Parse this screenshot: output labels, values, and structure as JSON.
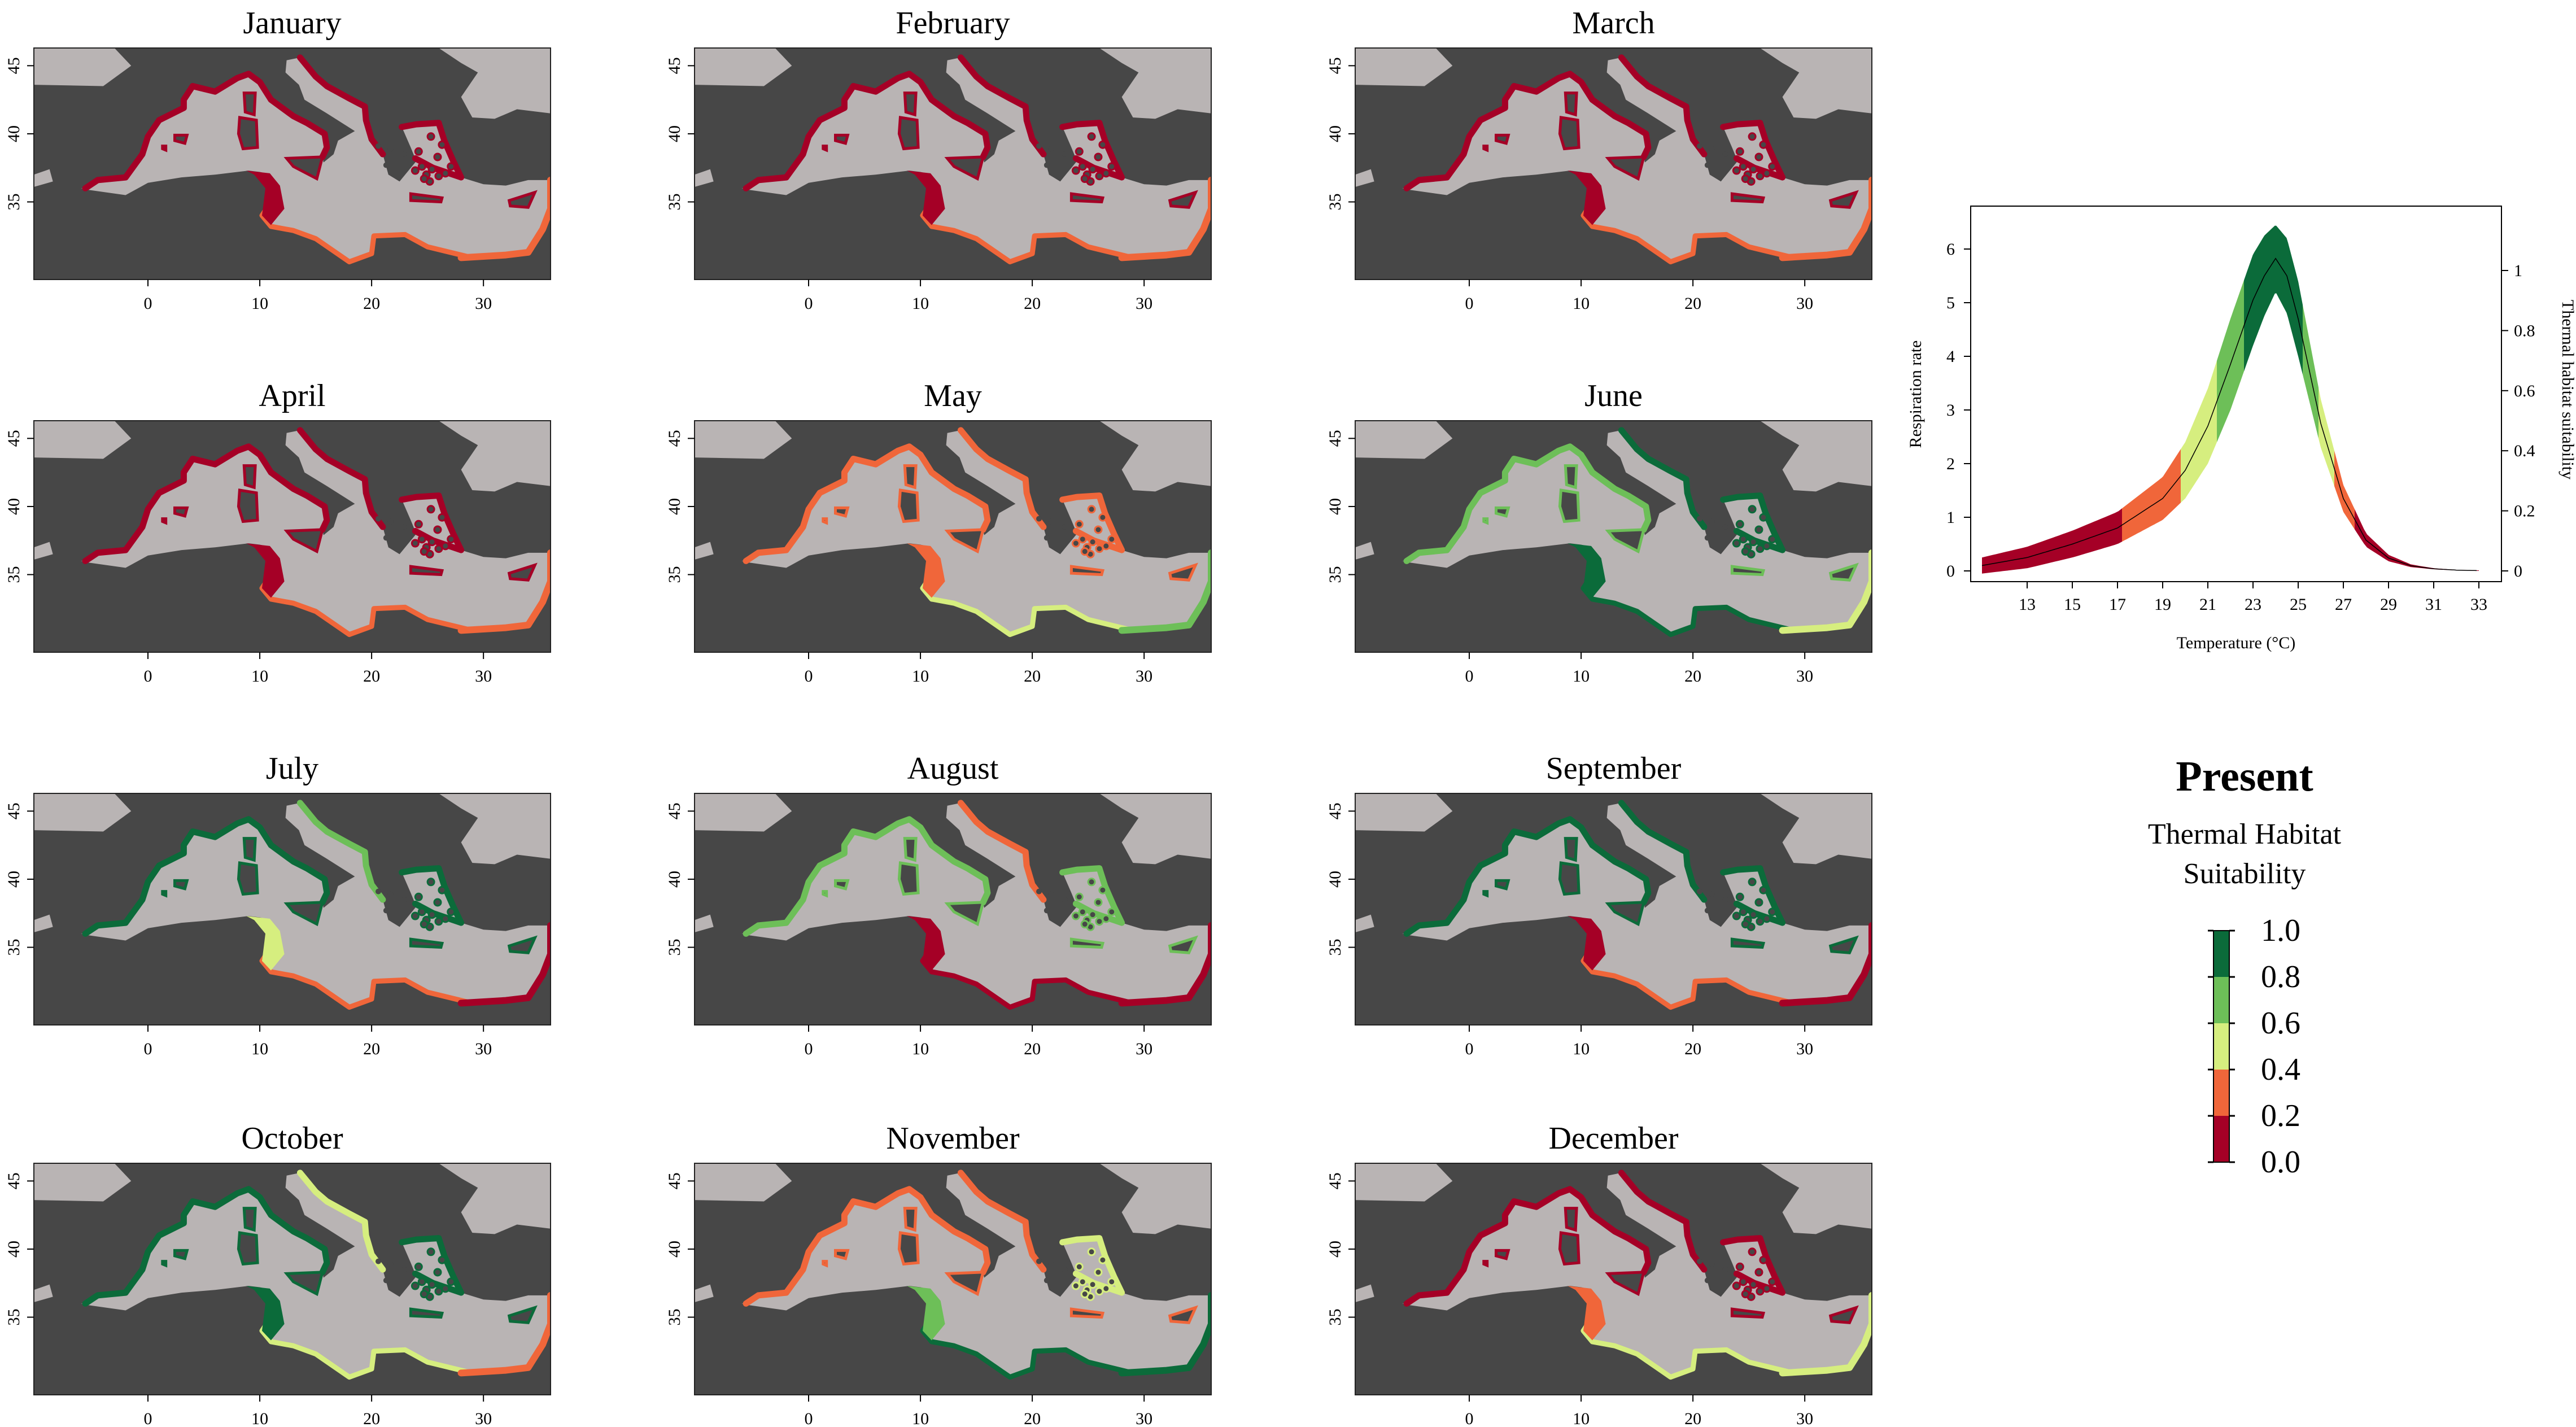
{
  "figure": {
    "title": "Present",
    "subtitle_lines": [
      "Thermal Habitat",
      "Suitability"
    ]
  },
  "colors": {
    "sea": "#474747",
    "land": "#b9b4b4",
    "frame": "#222222",
    "very_low": "#a50026",
    "low": "#f0663a",
    "mid": "#d6ee7f",
    "high": "#6dbf58",
    "very_high": "#0b6b3a"
  },
  "months": [
    {
      "name": "January",
      "pattern": "winter"
    },
    {
      "name": "February",
      "pattern": "winter"
    },
    {
      "name": "March",
      "pattern": "winter"
    },
    {
      "name": "April",
      "pattern": "spring"
    },
    {
      "name": "May",
      "pattern": "may"
    },
    {
      "name": "June",
      "pattern": "june"
    },
    {
      "name": "July",
      "pattern": "july"
    },
    {
      "name": "August",
      "pattern": "august"
    },
    {
      "name": "September",
      "pattern": "september"
    },
    {
      "name": "October",
      "pattern": "october"
    },
    {
      "name": "November",
      "pattern": "november"
    },
    {
      "name": "December",
      "pattern": "december"
    }
  ],
  "map_axes": {
    "x_ticks": [
      "0",
      "10",
      "20",
      "30"
    ],
    "y_ticks": [
      "45",
      "40",
      "35"
    ]
  },
  "legend": {
    "labels": [
      "1.0",
      "0.8",
      "0.6",
      "0.4",
      "0.2",
      "0.0"
    ]
  },
  "chart_data": {
    "type": "line",
    "xlabel": "Temperature (°C)",
    "ylabel": "Respiration rate",
    "y2label": "Thermal habitat suitability",
    "x_ticks": [
      "13",
      "15",
      "17",
      "19",
      "21",
      "23",
      "25",
      "27",
      "29",
      "31",
      "33"
    ],
    "y_ticks": [
      "0",
      "1",
      "2",
      "3",
      "4",
      "5",
      "6"
    ],
    "y2_ticks": [
      "0",
      "0.2",
      "0.4",
      "0.6",
      "0.8",
      "1"
    ],
    "xlim": [
      10.5,
      34
    ],
    "ylim": [
      -0.2,
      6.8
    ],
    "series": [
      {
        "x": [
          11,
          13,
          15,
          17,
          19,
          20,
          21,
          22,
          23,
          23.5,
          24,
          24.5,
          25,
          26,
          27,
          28,
          29,
          30,
          31,
          32,
          33
        ],
        "lower": [
          -0.05,
          0.05,
          0.25,
          0.5,
          0.95,
          1.35,
          2.0,
          3.0,
          4.2,
          4.75,
          5.2,
          4.8,
          4.0,
          2.3,
          1.1,
          0.45,
          0.18,
          0.07,
          0.03,
          0.01,
          0.0
        ],
        "upper": [
          0.25,
          0.45,
          0.75,
          1.1,
          1.75,
          2.4,
          3.4,
          4.7,
          5.9,
          6.25,
          6.45,
          6.2,
          5.4,
          3.2,
          1.6,
          0.7,
          0.3,
          0.12,
          0.05,
          0.02,
          0.01
        ]
      }
    ],
    "band_breaks": [
      {
        "x_from": 11,
        "x_to": 17.2,
        "class": "very_low"
      },
      {
        "x_from": 17.2,
        "x_to": 19.8,
        "class": "low"
      },
      {
        "x_from": 19.8,
        "x_to": 21.4,
        "class": "mid"
      },
      {
        "x_from": 21.4,
        "x_to": 22.6,
        "class": "high"
      },
      {
        "x_from": 22.6,
        "x_to": 25.2,
        "class": "very_high"
      },
      {
        "x_from": 25.2,
        "x_to": 25.9,
        "class": "high"
      },
      {
        "x_from": 25.9,
        "x_to": 26.6,
        "class": "mid"
      },
      {
        "x_from": 26.6,
        "x_to": 27.5,
        "class": "low"
      },
      {
        "x_from": 27.5,
        "x_to": 33,
        "class": "very_low"
      }
    ]
  }
}
